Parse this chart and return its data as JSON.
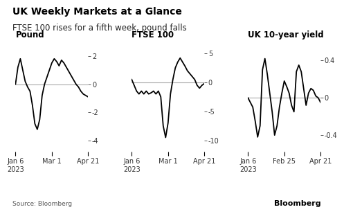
{
  "title": "UK Weekly Markets at a Glance",
  "subtitle": "FTSE 100 rises for a fifth week, pound falls",
  "source": "Source: Bloomberg",
  "bloomberg_label": "Bloomberg",
  "panels": [
    {
      "label": "Pound",
      "yticks_inside": [
        2,
        0,
        -2
      ],
      "ytick_outside": -4,
      "ylim": [
        -4.8,
        3.0
      ],
      "xtick_labels": [
        "Jan 6\n2023",
        "Mar 1",
        "Apr 21"
      ],
      "y": [
        0.0,
        1.2,
        1.8,
        1.0,
        0.2,
        -0.2,
        -0.5,
        -1.5,
        -2.8,
        -3.2,
        -2.5,
        -0.8,
        0.0,
        0.5,
        1.0,
        1.5,
        1.8,
        1.6,
        1.3,
        1.7,
        1.5,
        1.2,
        0.9,
        0.6,
        0.3,
        0.0,
        -0.2,
        -0.5,
        -0.7,
        -0.8,
        -0.9
      ]
    },
    {
      "label": "FTSE 100",
      "yticks_inside": [
        5,
        0,
        -5
      ],
      "ytick_outside": -10,
      "ylim": [
        -12.0,
        7.0
      ],
      "xtick_labels": [
        "Jan 6\n2023",
        "Mar 1",
        "Apr 21"
      ],
      "y": [
        0.5,
        -0.5,
        -1.5,
        -2.0,
        -1.5,
        -2.0,
        -1.5,
        -2.0,
        -1.8,
        -1.5,
        -2.0,
        -1.5,
        -2.5,
        -7.5,
        -9.5,
        -7.0,
        -2.0,
        0.5,
        2.5,
        3.5,
        4.2,
        3.5,
        2.8,
        2.0,
        1.5,
        1.0,
        0.5,
        -0.5,
        -1.0,
        -0.5,
        -0.2
      ]
    },
    {
      "label": "UK 10-year yield",
      "yticks_inside": [
        0.4,
        0.0
      ],
      "ytick_outside": -0.4,
      "ylim": [
        -0.58,
        0.6
      ],
      "xtick_labels": [
        "Jan 6\n2023",
        "Feb 25",
        "Apr 21"
      ],
      "y": [
        0.0,
        -0.05,
        -0.1,
        -0.25,
        -0.42,
        -0.3,
        0.3,
        0.42,
        0.25,
        0.05,
        -0.15,
        -0.4,
        -0.3,
        -0.1,
        0.05,
        0.18,
        0.12,
        0.05,
        -0.08,
        -0.15,
        0.28,
        0.35,
        0.28,
        0.1,
        -0.08,
        0.05,
        0.1,
        0.08,
        0.02,
        0.0,
        -0.05
      ]
    }
  ],
  "line_color": "#000000",
  "zero_line_color": "#aaaaaa",
  "bg_color": "#ffffff",
  "title_fontsize": 10,
  "subtitle_fontsize": 8.5,
  "label_fontsize": 8.5,
  "tick_fontsize": 7
}
